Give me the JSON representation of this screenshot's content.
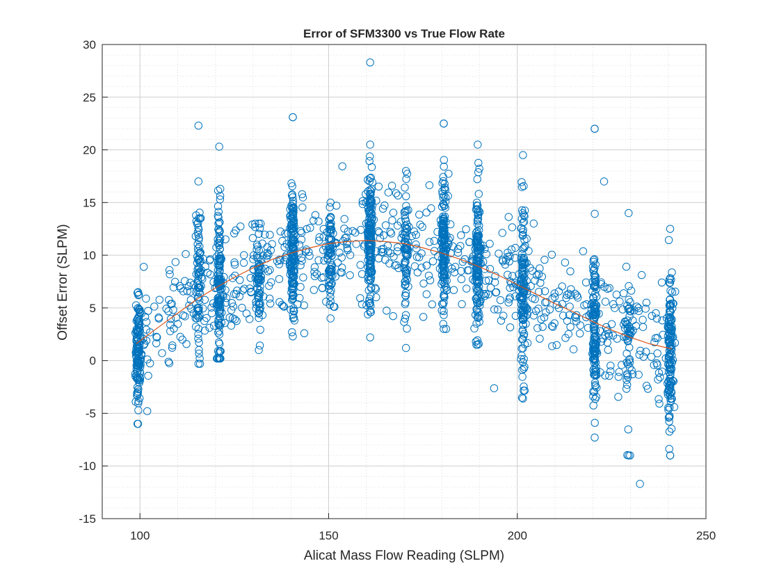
{
  "chart_data": {
    "type": "scatter",
    "title": "Error of SFM3300 vs True Flow Rate",
    "xlabel": "Alicat Mass Flow Reading (SLPM)",
    "ylabel": "Offset Error (SLPM)",
    "xlim": [
      90,
      250
    ],
    "ylim": [
      -15,
      30
    ],
    "xticks": [
      100,
      150,
      200,
      250
    ],
    "yticks": [
      -15,
      -10,
      -5,
      0,
      5,
      10,
      15,
      20,
      25,
      30
    ],
    "grid": true,
    "minor_grid": true,
    "legend": "none",
    "colors": {
      "markers": "#0072BD",
      "fit": "#D95319",
      "grid": "#DCDCDC",
      "axes": "#262626"
    },
    "series": [
      {
        "marker": "open-circle",
        "clusters": [
          {
            "x": 99.5,
            "y_min": -6,
            "y_max": 6.5,
            "mean": 1,
            "sd": 2.6,
            "count": 120
          },
          {
            "x": 115.5,
            "y_min": -0.3,
            "y_max": 17,
            "mean": 7.5,
            "sd": 3.8,
            "count": 70
          },
          {
            "x": 121,
            "y_min": 0.2,
            "y_max": 20.3,
            "mean": 7,
            "sd": 3.8,
            "count": 130
          },
          {
            "x": 131.5,
            "y_min": 1,
            "y_max": 13,
            "mean": 8,
            "sd": 2.5,
            "count": 60
          },
          {
            "x": 140.5,
            "y_min": 2.3,
            "y_max": 23.1,
            "mean": 10,
            "sd": 3.3,
            "count": 150
          },
          {
            "x": 150.5,
            "y_min": 4,
            "y_max": 15,
            "mean": 10,
            "sd": 2.2,
            "count": 60
          },
          {
            "x": 161,
            "y_min": 2.2,
            "y_max": 20.5,
            "mean": 12,
            "sd": 3.2,
            "count": 160
          },
          {
            "x": 170.5,
            "y_min": 1.2,
            "y_max": 18,
            "mean": 10.5,
            "sd": 2.8,
            "count": 70
          },
          {
            "x": 180.5,
            "y_min": 3,
            "y_max": 22.5,
            "mean": 11,
            "sd": 3.2,
            "count": 140
          },
          {
            "x": 189.5,
            "y_min": 1.5,
            "y_max": 20.5,
            "mean": 9.5,
            "sd": 3.5,
            "count": 130
          },
          {
            "x": 201.5,
            "y_min": -3.6,
            "y_max": 19.5,
            "mean": 7,
            "sd": 4,
            "count": 120
          },
          {
            "x": 220.5,
            "y_min": -7.3,
            "y_max": 22,
            "mean": 3,
            "sd": 3.8,
            "count": 130
          },
          {
            "x": 229.5,
            "y_min": -9,
            "y_max": 14,
            "mean": 1.5,
            "sd": 4,
            "count": 40
          },
          {
            "x": 240.5,
            "y_min": -9,
            "y_max": 12.5,
            "mean": 1,
            "sd": 3.8,
            "count": 130
          }
        ],
        "scattered": {
          "x_min": 99,
          "x_max": 242,
          "count": 700
        },
        "outliers": [
          {
            "x": 161,
            "y": 28.3
          },
          {
            "x": 232.5,
            "y": -11.7
          },
          {
            "x": 115.5,
            "y": 22.3
          },
          {
            "x": 140.5,
            "y": 23.1
          },
          {
            "x": 180.5,
            "y": 22.5
          },
          {
            "x": 220.5,
            "y": 22
          },
          {
            "x": 223,
            "y": 17
          },
          {
            "x": 101,
            "y": 8.9
          }
        ]
      },
      {
        "marker": "line",
        "x": [
          99,
          105,
          110,
          115,
          120,
          125,
          130,
          135,
          140,
          145,
          150,
          155,
          160,
          165,
          170,
          175,
          180,
          185,
          190,
          195,
          200,
          205,
          210,
          215,
          220,
          225,
          230,
          235,
          241
        ],
        "values": [
          1.6,
          3.2,
          4.5,
          5.8,
          6.9,
          7.9,
          8.8,
          9.6,
          10.2,
          10.7,
          11.1,
          11.3,
          11.4,
          11.3,
          11.1,
          10.7,
          10.2,
          9.6,
          8.9,
          8.1,
          7.2,
          6.3,
          5.4,
          4.6,
          3.7,
          2.9,
          2.2,
          1.6,
          1.1
        ]
      }
    ]
  }
}
